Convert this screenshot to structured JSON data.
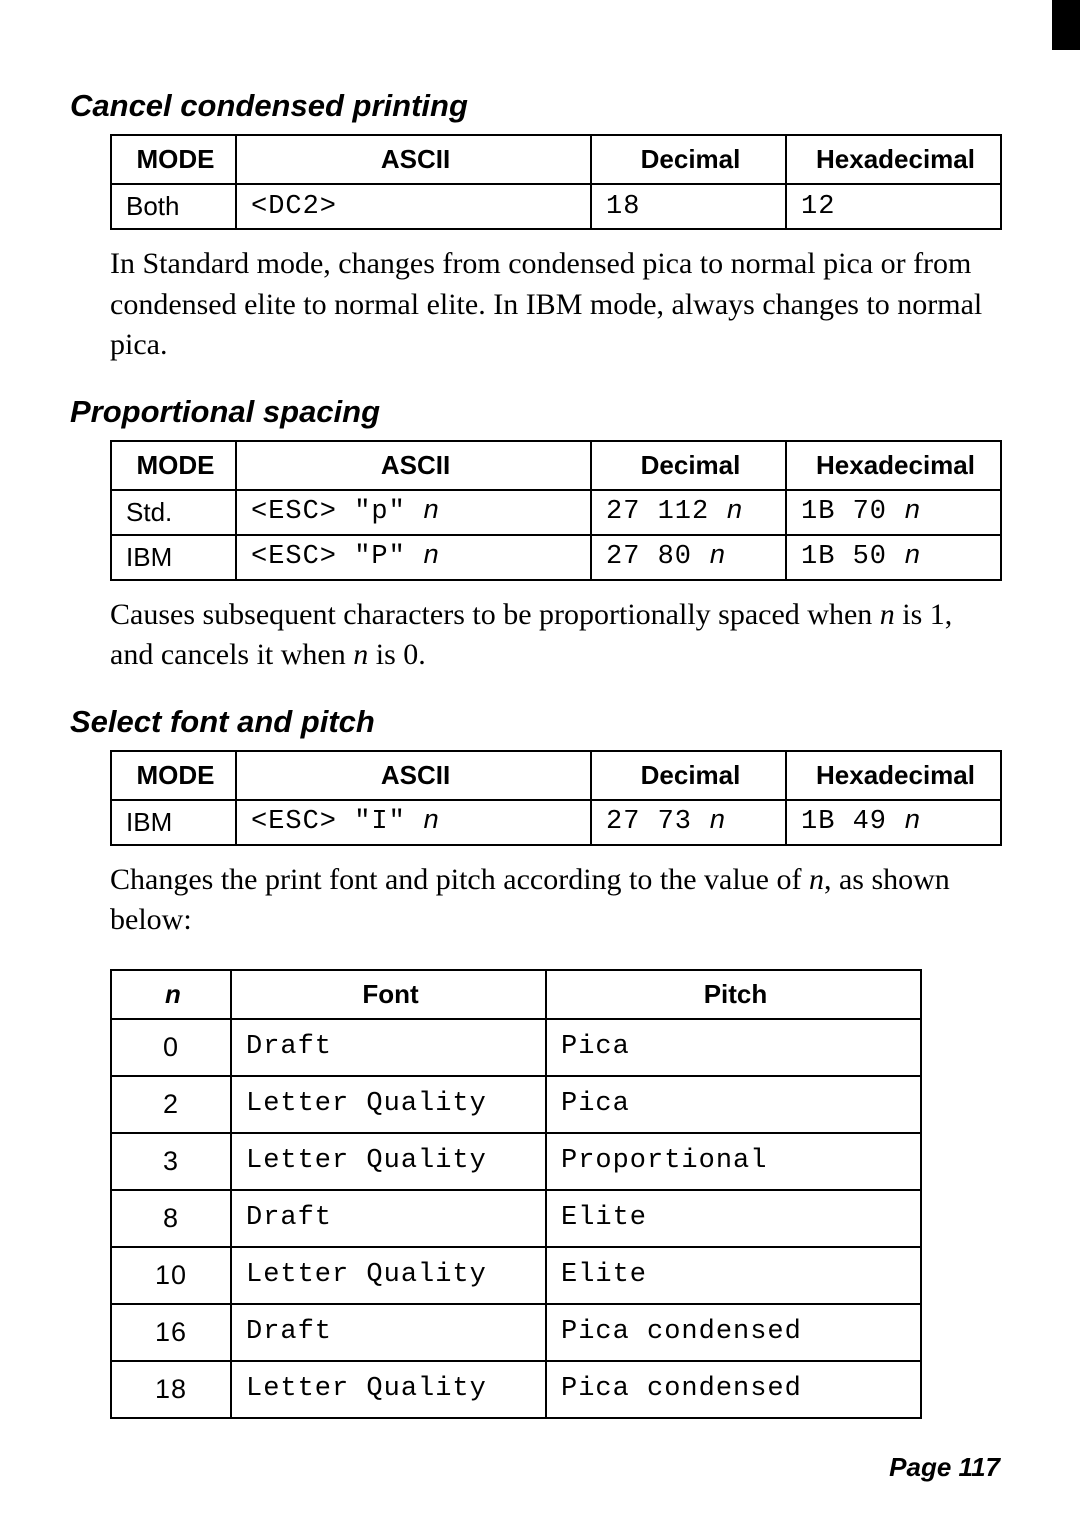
{
  "sections": {
    "cancel_condensed": {
      "title": "Cancel condensed printing",
      "headers": [
        "MODE",
        "ASCII",
        "Decimal",
        "Hexadecimal"
      ],
      "rows": [
        {
          "mode": "Both",
          "ascii": "<DC2>",
          "dec": "18",
          "hex": "12"
        }
      ],
      "desc": "In Standard mode, changes from condensed pica to normal pica or from condensed elite to normal elite. In IBM mode, always changes to normal pica."
    },
    "proportional": {
      "title": "Proportional spacing",
      "headers": [
        "MODE",
        "ASCII",
        "Decimal",
        "Hexadecimal"
      ],
      "rows": [
        {
          "mode": "Std.",
          "ascii_pre": "<ESC> \"p\" ",
          "ascii_ital": "n",
          "dec_pre": "27 112 ",
          "dec_ital": "n",
          "hex_pre": "1B 70 ",
          "hex_ital": "n"
        },
        {
          "mode": "IBM",
          "ascii_pre": "<ESC> \"P\" ",
          "ascii_ital": "n",
          "dec_pre": "27 80 ",
          "dec_ital": "n",
          "hex_pre": "1B 50 ",
          "hex_ital": "n"
        }
      ],
      "desc_pre": "Causes subsequent characters to be proportionally spaced when ",
      "desc_n1": "n",
      "desc_mid": " is 1, and cancels it when ",
      "desc_n2": "n",
      "desc_post": " is 0."
    },
    "select_font": {
      "title": "Select font and pitch",
      "headers": [
        "MODE",
        "ASCII",
        "Decimal",
        "Hexadecimal"
      ],
      "rows": [
        {
          "mode": "IBM",
          "ascii_pre": "<ESC> \"I\" ",
          "ascii_ital": "n",
          "dec_pre": "27 73 ",
          "dec_ital": "n",
          "hex_pre": "1B 49 ",
          "hex_ital": "n"
        }
      ],
      "desc_pre": "Changes the print font and pitch according to the value of ",
      "desc_n": "n",
      "desc_post": ", as shown below:"
    },
    "font_table": {
      "headers": [
        "n",
        "Font",
        "Pitch"
      ],
      "rows": [
        {
          "n": "0",
          "font": "Draft",
          "pitch": "Pica"
        },
        {
          "n": "2",
          "font": "Letter Quality",
          "pitch": "Pica"
        },
        {
          "n": "3",
          "font": "Letter Quality",
          "pitch": "Proportional"
        },
        {
          "n": "8",
          "font": "Draft",
          "pitch": "Elite"
        },
        {
          "n": "10",
          "font": "Letter Quality",
          "pitch": "Elite"
        },
        {
          "n": "16",
          "font": "Draft",
          "pitch": "Pica condensed"
        },
        {
          "n": "18",
          "font": "Letter Quality",
          "pitch": "Pica condensed"
        }
      ]
    }
  },
  "page_label": "Page 117"
}
